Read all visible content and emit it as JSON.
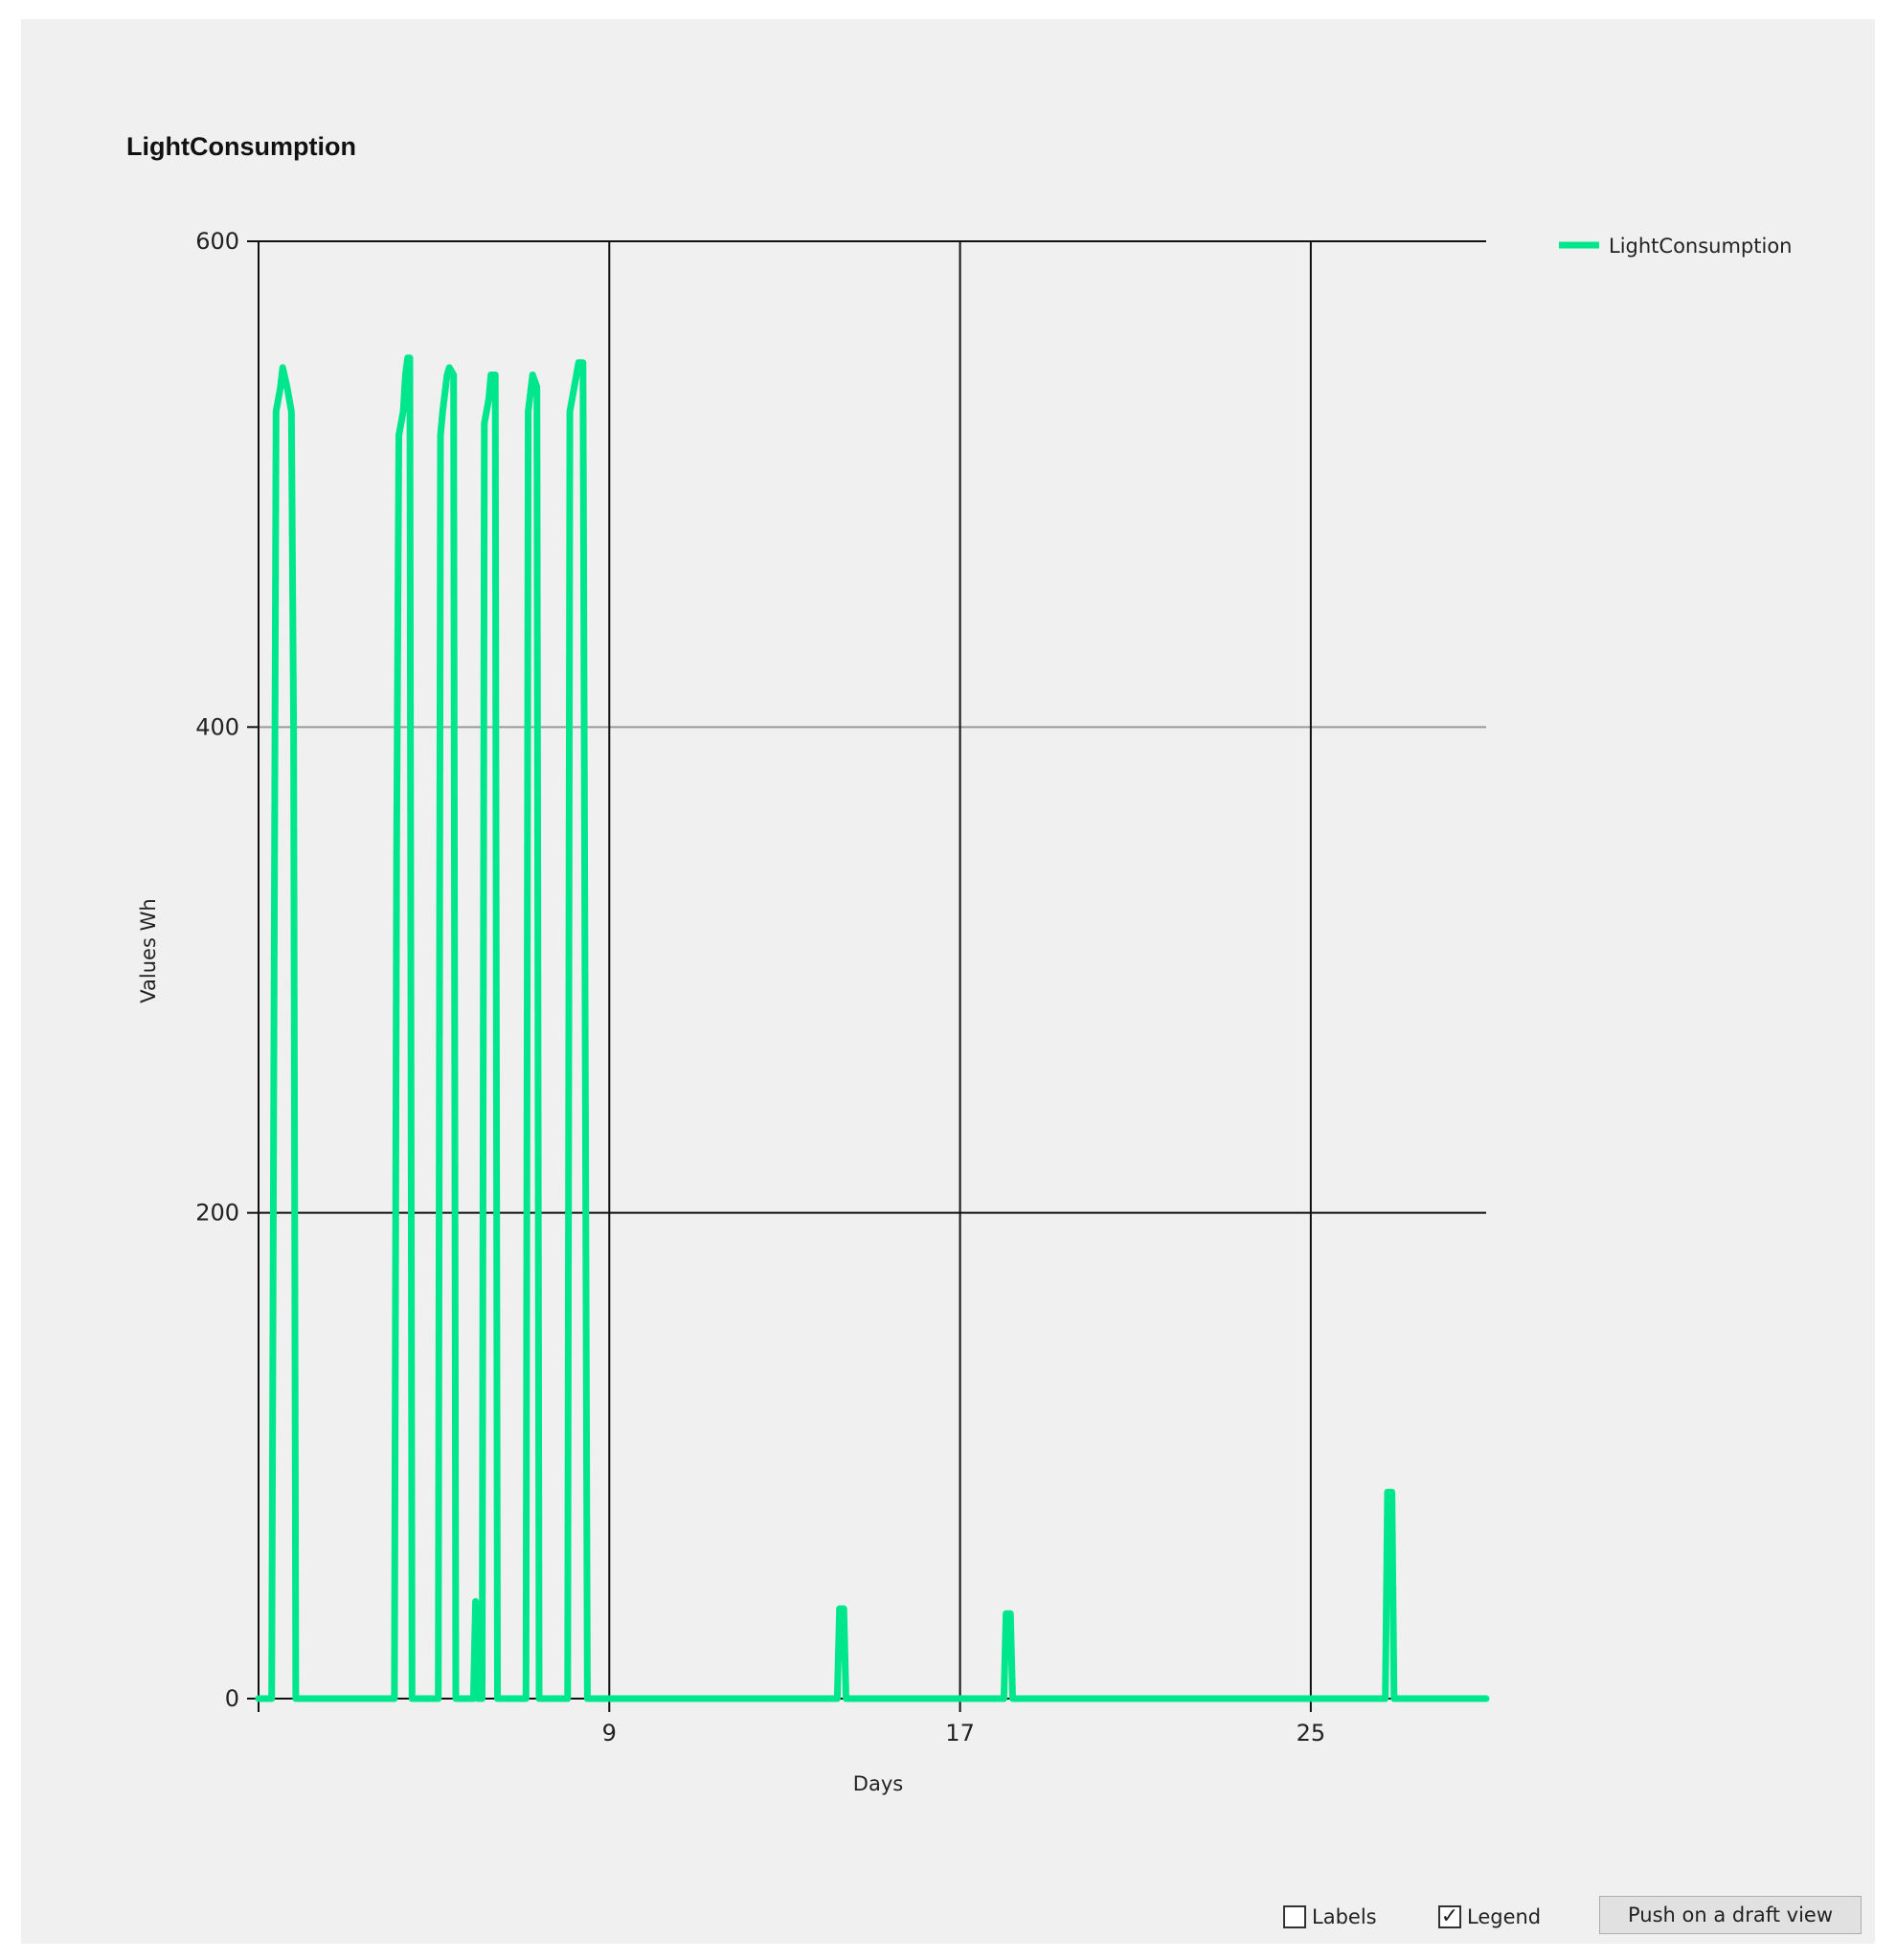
{
  "chart_data": {
    "type": "line",
    "title": "LightConsumption",
    "xlabel": "Days",
    "ylabel": "Values Wh",
    "xlim": [
      1,
      29
    ],
    "ylim": [
      0,
      600
    ],
    "x_ticks": [
      9,
      17,
      25
    ],
    "y_ticks": [
      0,
      200,
      400,
      600
    ],
    "grid": true,
    "legend": "top-right, outside plot",
    "series": [
      {
        "name": "LightConsumption",
        "color": "#00e68c",
        "points": [
          [
            1.0,
            0
          ],
          [
            1.2,
            0
          ],
          [
            1.3,
            0
          ],
          [
            1.4,
            530
          ],
          [
            1.5,
            540
          ],
          [
            1.55,
            548
          ],
          [
            1.65,
            540
          ],
          [
            1.75,
            530
          ],
          [
            1.8,
            400
          ],
          [
            1.85,
            0
          ],
          [
            4.0,
            0
          ],
          [
            4.1,
            0
          ],
          [
            4.15,
            350
          ],
          [
            4.2,
            520
          ],
          [
            4.3,
            530
          ],
          [
            4.35,
            545
          ],
          [
            4.4,
            552
          ],
          [
            4.45,
            552
          ],
          [
            4.5,
            0
          ],
          [
            5.0,
            0
          ],
          [
            5.1,
            0
          ],
          [
            5.15,
            520
          ],
          [
            5.2,
            530
          ],
          [
            5.3,
            545
          ],
          [
            5.35,
            548
          ],
          [
            5.45,
            545
          ],
          [
            5.5,
            0
          ],
          [
            5.9,
            0
          ],
          [
            5.95,
            40
          ],
          [
            6.0,
            0
          ],
          [
            6.1,
            0
          ],
          [
            6.15,
            525
          ],
          [
            6.25,
            535
          ],
          [
            6.3,
            545
          ],
          [
            6.4,
            545
          ],
          [
            6.45,
            0
          ],
          [
            7.0,
            0
          ],
          [
            7.1,
            0
          ],
          [
            7.15,
            530
          ],
          [
            7.25,
            545
          ],
          [
            7.35,
            540
          ],
          [
            7.4,
            0
          ],
          [
            7.9,
            0
          ],
          [
            8.05,
            0
          ],
          [
            8.1,
            530
          ],
          [
            8.2,
            540
          ],
          [
            8.3,
            550
          ],
          [
            8.4,
            550
          ],
          [
            8.5,
            0
          ],
          [
            14.0,
            0
          ],
          [
            14.2,
            0
          ],
          [
            14.25,
            37
          ],
          [
            14.35,
            37
          ],
          [
            14.4,
            0
          ],
          [
            17.9,
            0
          ],
          [
            18.0,
            0
          ],
          [
            18.05,
            35
          ],
          [
            18.15,
            35
          ],
          [
            18.2,
            0
          ],
          [
            26.5,
            0
          ],
          [
            26.7,
            0
          ],
          [
            26.75,
            85
          ],
          [
            26.85,
            85
          ],
          [
            26.9,
            0
          ],
          [
            29.0,
            0
          ]
        ]
      }
    ]
  },
  "controls": {
    "labels_text": "Labels",
    "labels_checked": false,
    "legend_text": "Legend",
    "legend_checked": true,
    "button_label": "Push on a draft view"
  }
}
